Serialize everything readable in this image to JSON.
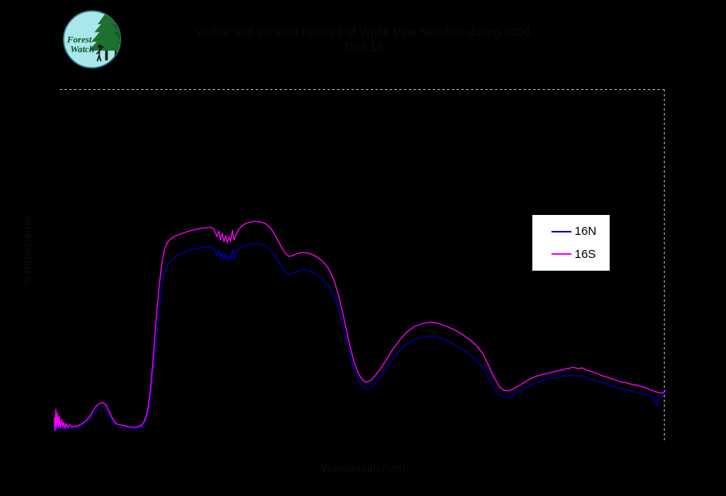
{
  "page": {
    "background_color": "#000000"
  },
  "logo": {
    "line1": "Forest",
    "line2": "Watch",
    "circle_color": "#a9e7eb",
    "ring_color": "#2e8088",
    "tree_color": "#1e6f30",
    "trunk_color": "#0d2b14",
    "text_color": "#155226"
  },
  "title": {
    "line1": "Visible and Infrared Spectra of White Pine Needles during 2006",
    "line2": "Tree 16",
    "color": "#000000"
  },
  "axes": {
    "x_label": "Wavelength (nm)",
    "y_label": "% Reflectance",
    "label_color": "#000000"
  },
  "legend": {
    "background": "#ffffff",
    "text_color": "#000000",
    "items": [
      {
        "label": "16N",
        "color": "#0000b0"
      },
      {
        "label": "16S",
        "color": "#ff00ff"
      }
    ]
  },
  "chart_data": {
    "type": "line",
    "title": "Visible and Infrared Spectra of White Pine Needles during 2006 — Tree 16",
    "xlabel": "Wavelength (nm)",
    "ylabel": "% Reflectance",
    "xlim": [
      350,
      2500
    ],
    "ylim": [
      0,
      60
    ],
    "grid": false,
    "legend_position": "right-center",
    "series": [
      {
        "name": "16N",
        "color": "#0000b0",
        "points": [
          [
            350,
            3.4
          ],
          [
            353,
            1.7
          ],
          [
            356,
            4.6
          ],
          [
            359,
            2.0
          ],
          [
            362,
            4.1
          ],
          [
            365,
            2.1
          ],
          [
            368,
            3.6
          ],
          [
            372,
            2.0
          ],
          [
            376,
            3.2
          ],
          [
            380,
            2.2
          ],
          [
            384,
            2.9
          ],
          [
            388,
            2.1
          ],
          [
            393,
            2.7
          ],
          [
            398,
            2.2
          ],
          [
            405,
            2.5
          ],
          [
            412,
            2.2
          ],
          [
            420,
            2.4
          ],
          [
            430,
            2.3
          ],
          [
            440,
            2.6
          ],
          [
            452,
            2.9
          ],
          [
            464,
            3.3
          ],
          [
            476,
            3.9
          ],
          [
            488,
            4.8
          ],
          [
            500,
            5.5
          ],
          [
            512,
            5.9
          ],
          [
            522,
            6.0
          ],
          [
            532,
            5.6
          ],
          [
            544,
            4.5
          ],
          [
            556,
            3.4
          ],
          [
            568,
            2.7
          ],
          [
            580,
            2.5
          ],
          [
            594,
            2.4
          ],
          [
            608,
            2.3
          ],
          [
            622,
            2.2
          ],
          [
            636,
            2.2
          ],
          [
            648,
            2.3
          ],
          [
            658,
            2.6
          ],
          [
            668,
            3.2
          ],
          [
            678,
            4.5
          ],
          [
            688,
            7.2
          ],
          [
            698,
            11.5
          ],
          [
            708,
            16.8
          ],
          [
            718,
            21.8
          ],
          [
            728,
            26.0
          ],
          [
            738,
            28.8
          ],
          [
            748,
            30.2
          ],
          [
            762,
            31.0
          ],
          [
            776,
            31.6
          ],
          [
            792,
            32.0
          ],
          [
            810,
            32.4
          ],
          [
            828,
            32.7
          ],
          [
            846,
            32.9
          ],
          [
            864,
            33.1
          ],
          [
            882,
            33.2
          ],
          [
            900,
            33.3
          ],
          [
            912,
            33.0
          ],
          [
            922,
            31.8
          ],
          [
            929,
            32.7
          ],
          [
            935,
            31.3
          ],
          [
            941,
            32.4
          ],
          [
            947,
            31.0
          ],
          [
            953,
            32.1
          ],
          [
            959,
            30.8
          ],
          [
            965,
            31.8
          ],
          [
            971,
            31.1
          ],
          [
            977,
            32.8
          ],
          [
            983,
            31.2
          ],
          [
            990,
            32.2
          ],
          [
            1000,
            33.0
          ],
          [
            1012,
            33.4
          ],
          [
            1026,
            33.6
          ],
          [
            1042,
            33.7
          ],
          [
            1058,
            33.8
          ],
          [
            1076,
            33.7
          ],
          [
            1094,
            33.4
          ],
          [
            1112,
            32.7
          ],
          [
            1130,
            31.5
          ],
          [
            1148,
            30.0
          ],
          [
            1164,
            29.0
          ],
          [
            1176,
            28.6
          ],
          [
            1190,
            28.8
          ],
          [
            1206,
            29.1
          ],
          [
            1224,
            29.3
          ],
          [
            1242,
            29.2
          ],
          [
            1260,
            28.9
          ],
          [
            1278,
            28.4
          ],
          [
            1296,
            27.7
          ],
          [
            1314,
            26.7
          ],
          [
            1332,
            25.2
          ],
          [
            1350,
            22.7
          ],
          [
            1368,
            19.3
          ],
          [
            1386,
            15.6
          ],
          [
            1404,
            12.4
          ],
          [
            1422,
            10.3
          ],
          [
            1438,
            9.3
          ],
          [
            1450,
            9.0
          ],
          [
            1464,
            9.3
          ],
          [
            1480,
            10.0
          ],
          [
            1498,
            11.1
          ],
          [
            1518,
            12.5
          ],
          [
            1540,
            14.0
          ],
          [
            1564,
            15.5
          ],
          [
            1590,
            16.7
          ],
          [
            1618,
            17.5
          ],
          [
            1646,
            17.9
          ],
          [
            1674,
            18.0
          ],
          [
            1702,
            17.8
          ],
          [
            1730,
            17.3
          ],
          [
            1758,
            16.6
          ],
          [
            1786,
            15.8
          ],
          [
            1812,
            14.9
          ],
          [
            1836,
            13.9
          ],
          [
            1858,
            12.6
          ],
          [
            1878,
            10.8
          ],
          [
            1898,
            9.1
          ],
          [
            1916,
            8.0
          ],
          [
            1932,
            7.6
          ],
          [
            1948,
            7.6
          ],
          [
            1964,
            7.9
          ],
          [
            1982,
            8.4
          ],
          [
            2002,
            9.0
          ],
          [
            2026,
            9.7
          ],
          [
            2052,
            10.2
          ],
          [
            2078,
            10.6
          ],
          [
            2104,
            10.9
          ],
          [
            2130,
            11.1
          ],
          [
            2156,
            11.3
          ],
          [
            2176,
            11.4
          ],
          [
            2192,
            11.2
          ],
          [
            2208,
            11.3
          ],
          [
            2224,
            10.9
          ],
          [
            2240,
            10.7
          ],
          [
            2258,
            10.4
          ],
          [
            2276,
            10.1
          ],
          [
            2296,
            9.8
          ],
          [
            2316,
            9.5
          ],
          [
            2338,
            9.1
          ],
          [
            2360,
            8.9
          ],
          [
            2382,
            8.6
          ],
          [
            2404,
            8.4
          ],
          [
            2426,
            8.2
          ],
          [
            2446,
            7.9
          ],
          [
            2458,
            7.4
          ],
          [
            2470,
            6.1
          ],
          [
            2478,
            7.8
          ],
          [
            2488,
            7.6
          ],
          [
            2500,
            8.6
          ]
        ]
      },
      {
        "name": "16S",
        "color": "#ff00ff",
        "points": [
          [
            350,
            4.2
          ],
          [
            353,
            1.9
          ],
          [
            356,
            5.6
          ],
          [
            359,
            2.3
          ],
          [
            362,
            5.0
          ],
          [
            365,
            2.4
          ],
          [
            368,
            4.4
          ],
          [
            372,
            2.3
          ],
          [
            376,
            3.9
          ],
          [
            380,
            2.5
          ],
          [
            384,
            3.4
          ],
          [
            388,
            2.4
          ],
          [
            393,
            3.1
          ],
          [
            398,
            2.5
          ],
          [
            405,
            2.9
          ],
          [
            412,
            2.5
          ],
          [
            420,
            2.7
          ],
          [
            430,
            2.6
          ],
          [
            440,
            2.9
          ],
          [
            452,
            3.2
          ],
          [
            464,
            3.7
          ],
          [
            476,
            4.4
          ],
          [
            488,
            5.4
          ],
          [
            500,
            6.2
          ],
          [
            512,
            6.6
          ],
          [
            522,
            6.7
          ],
          [
            532,
            6.3
          ],
          [
            544,
            5.1
          ],
          [
            556,
            3.9
          ],
          [
            568,
            3.1
          ],
          [
            580,
            2.9
          ],
          [
            594,
            2.8
          ],
          [
            608,
            2.6
          ],
          [
            622,
            2.5
          ],
          [
            636,
            2.5
          ],
          [
            648,
            2.6
          ],
          [
            658,
            2.9
          ],
          [
            668,
            3.6
          ],
          [
            678,
            5.2
          ],
          [
            688,
            8.6
          ],
          [
            698,
            14.0
          ],
          [
            708,
            20.5
          ],
          [
            718,
            26.0
          ],
          [
            728,
            30.2
          ],
          [
            738,
            32.8
          ],
          [
            748,
            34.0
          ],
          [
            762,
            34.7
          ],
          [
            776,
            35.1
          ],
          [
            792,
            35.4
          ],
          [
            810,
            35.7
          ],
          [
            828,
            36.0
          ],
          [
            846,
            36.2
          ],
          [
            864,
            36.4
          ],
          [
            882,
            36.5
          ],
          [
            900,
            36.6
          ],
          [
            912,
            36.3
          ],
          [
            922,
            35.0
          ],
          [
            929,
            35.9
          ],
          [
            935,
            34.4
          ],
          [
            941,
            35.6
          ],
          [
            947,
            34.1
          ],
          [
            953,
            35.2
          ],
          [
            959,
            34.0
          ],
          [
            965,
            34.9
          ],
          [
            971,
            34.2
          ],
          [
            977,
            36.1
          ],
          [
            983,
            34.4
          ],
          [
            990,
            35.4
          ],
          [
            1000,
            36.3
          ],
          [
            1012,
            36.9
          ],
          [
            1026,
            37.3
          ],
          [
            1042,
            37.5
          ],
          [
            1058,
            37.6
          ],
          [
            1076,
            37.5
          ],
          [
            1094,
            37.2
          ],
          [
            1112,
            36.4
          ],
          [
            1130,
            35.0
          ],
          [
            1148,
            33.3
          ],
          [
            1164,
            32.1
          ],
          [
            1176,
            31.6
          ],
          [
            1190,
            31.8
          ],
          [
            1206,
            32.1
          ],
          [
            1224,
            32.3
          ],
          [
            1242,
            32.2
          ],
          [
            1260,
            31.9
          ],
          [
            1278,
            31.4
          ],
          [
            1296,
            30.7
          ],
          [
            1314,
            29.6
          ],
          [
            1332,
            27.9
          ],
          [
            1350,
            25.1
          ],
          [
            1368,
            21.3
          ],
          [
            1386,
            17.2
          ],
          [
            1404,
            13.7
          ],
          [
            1422,
            11.4
          ],
          [
            1438,
            10.4
          ],
          [
            1450,
            10.2
          ],
          [
            1464,
            10.5
          ],
          [
            1480,
            11.3
          ],
          [
            1498,
            12.5
          ],
          [
            1518,
            14.0
          ],
          [
            1540,
            15.7
          ],
          [
            1564,
            17.3
          ],
          [
            1590,
            18.7
          ],
          [
            1618,
            19.7
          ],
          [
            1646,
            20.2
          ],
          [
            1674,
            20.4
          ],
          [
            1702,
            20.2
          ],
          [
            1730,
            19.7
          ],
          [
            1758,
            19.1
          ],
          [
            1786,
            18.3
          ],
          [
            1812,
            17.4
          ],
          [
            1836,
            16.4
          ],
          [
            1858,
            15.0
          ],
          [
            1878,
            13.0
          ],
          [
            1898,
            10.9
          ],
          [
            1916,
            9.4
          ],
          [
            1932,
            8.8
          ],
          [
            1948,
            8.7
          ],
          [
            1964,
            9.0
          ],
          [
            1982,
            9.5
          ],
          [
            2002,
            10.1
          ],
          [
            2026,
            10.8
          ],
          [
            2052,
            11.3
          ],
          [
            2078,
            11.6
          ],
          [
            2104,
            11.9
          ],
          [
            2130,
            12.2
          ],
          [
            2156,
            12.5
          ],
          [
            2176,
            12.7
          ],
          [
            2192,
            12.5
          ],
          [
            2208,
            12.6
          ],
          [
            2224,
            12.2
          ],
          [
            2240,
            12.0
          ],
          [
            2258,
            11.7
          ],
          [
            2276,
            11.3
          ],
          [
            2296,
            11.0
          ],
          [
            2316,
            10.7
          ],
          [
            2338,
            10.3
          ],
          [
            2360,
            10.1
          ],
          [
            2382,
            9.8
          ],
          [
            2404,
            9.6
          ],
          [
            2426,
            9.3
          ],
          [
            2446,
            8.9
          ],
          [
            2462,
            8.6
          ],
          [
            2476,
            8.4
          ],
          [
            2488,
            8.3
          ],
          [
            2500,
            8.7
          ]
        ]
      }
    ]
  }
}
